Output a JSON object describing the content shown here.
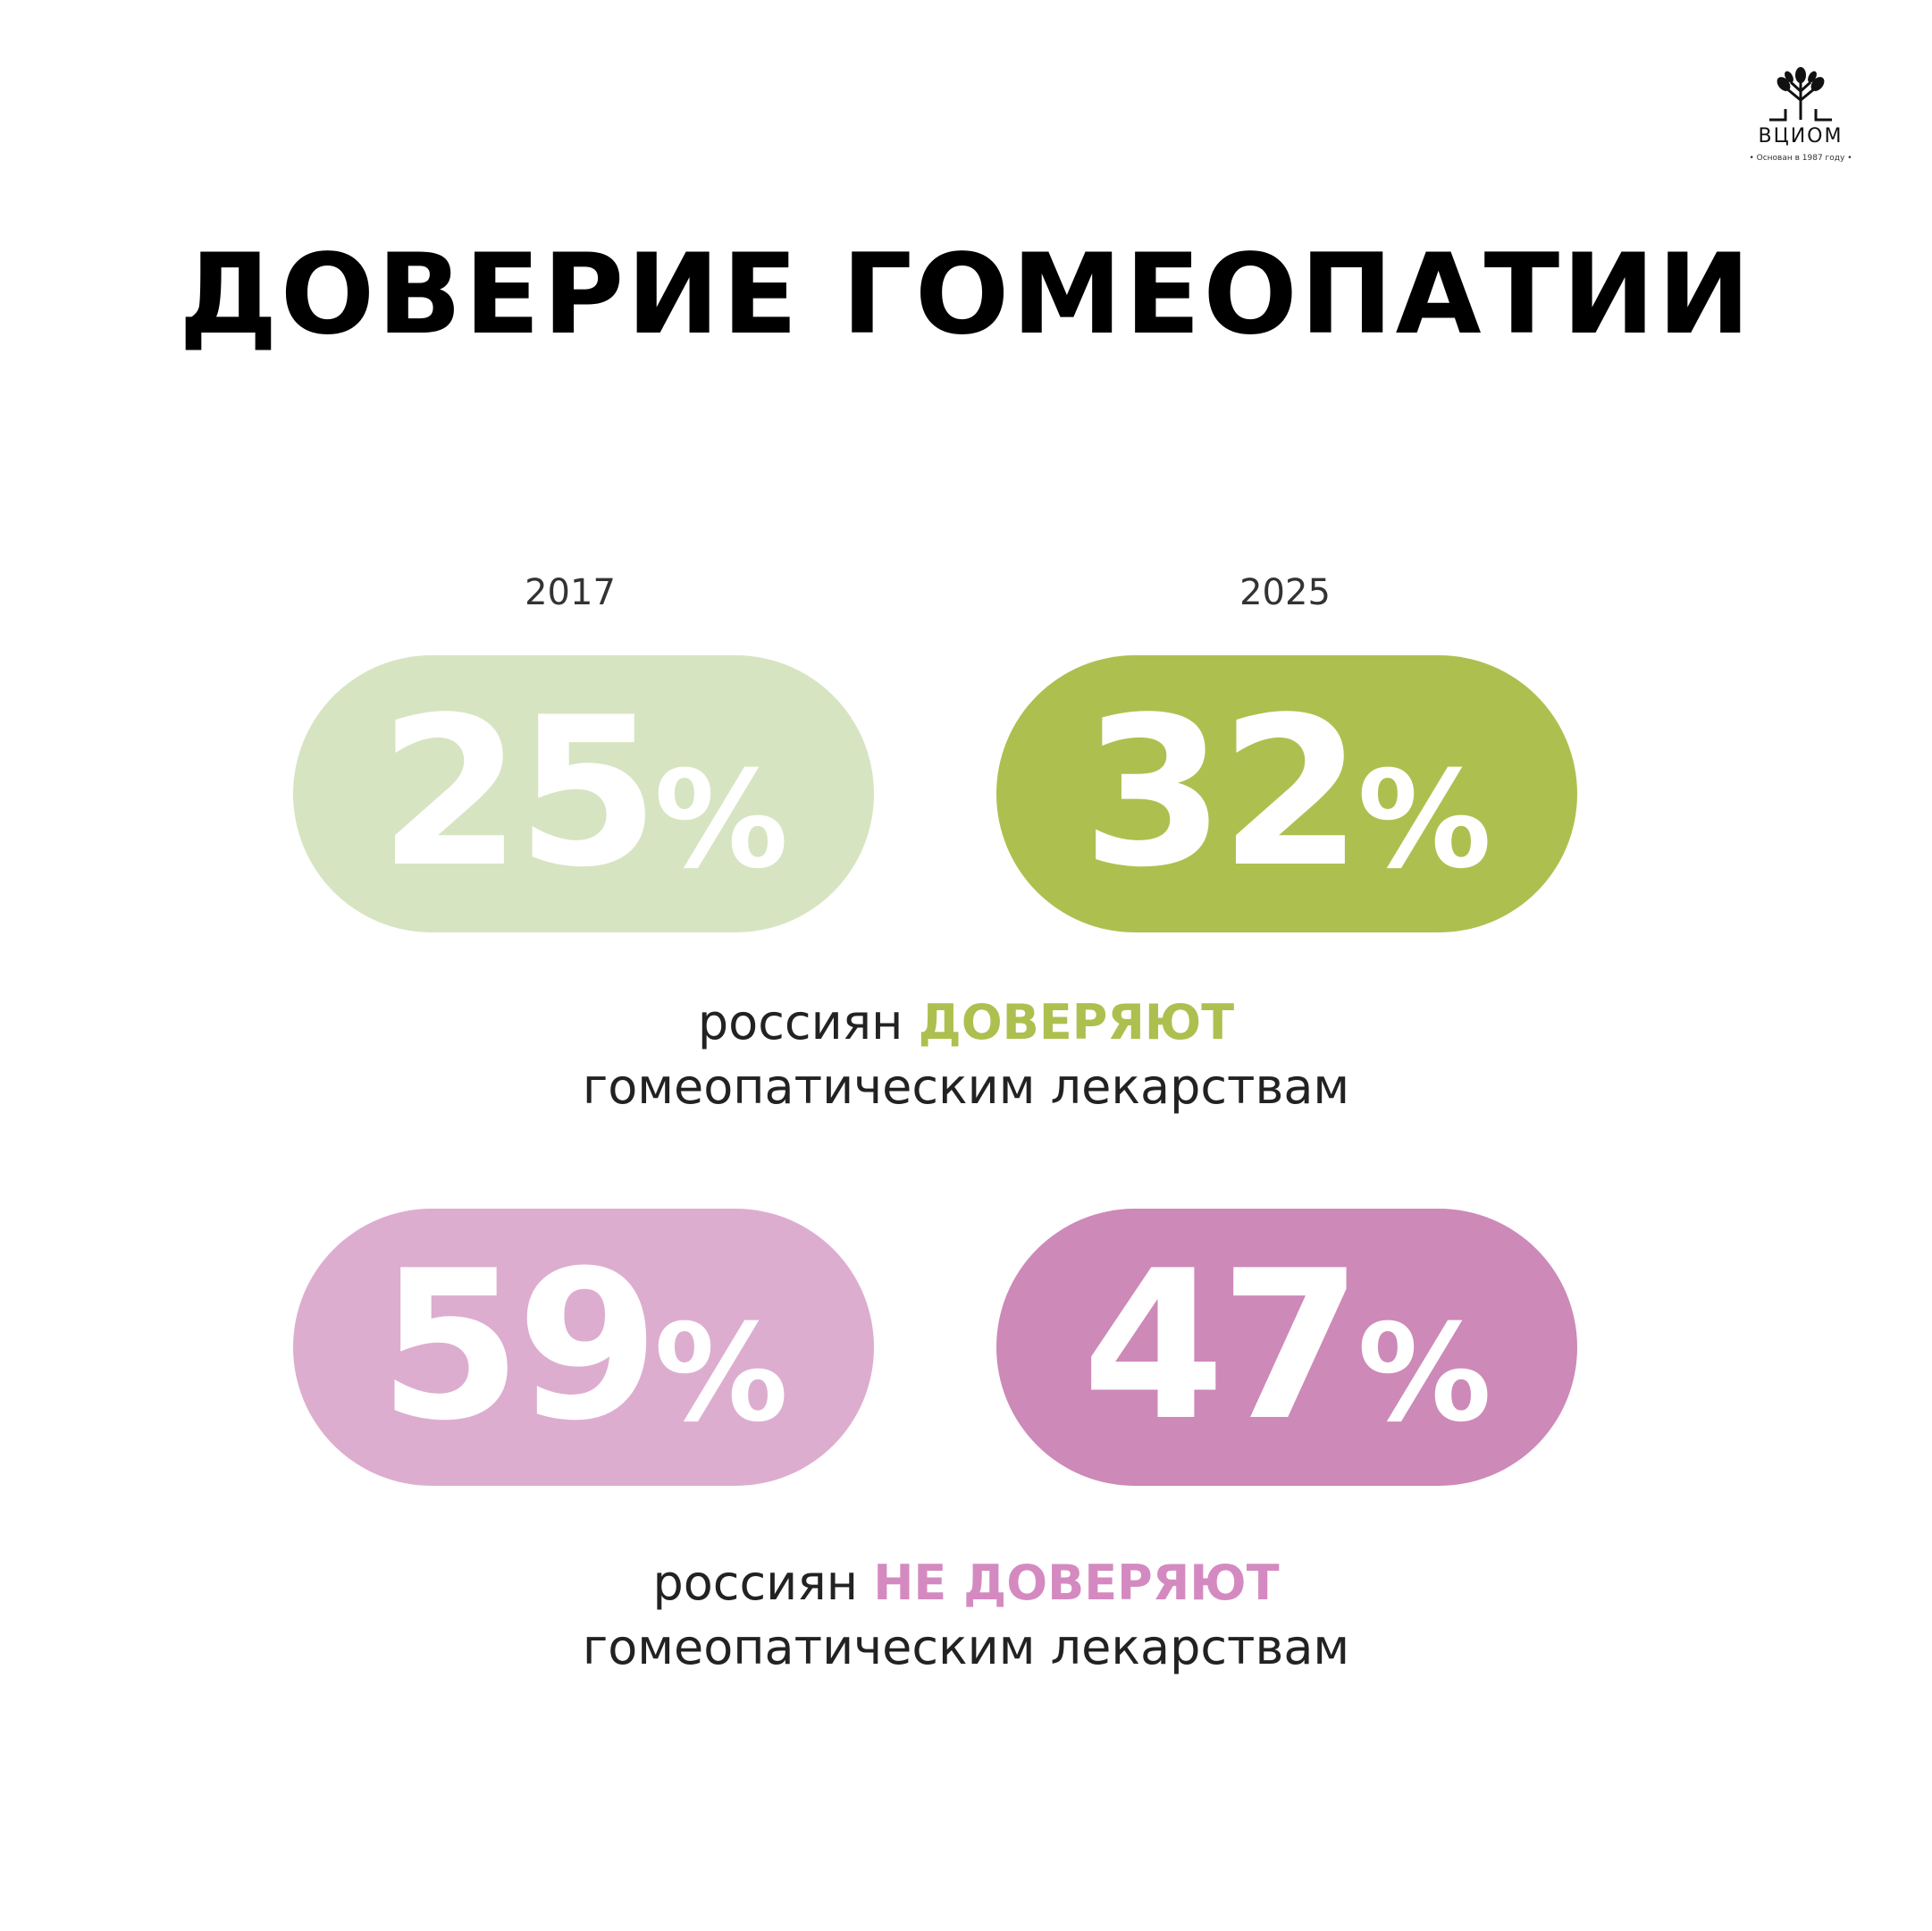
{
  "logo": {
    "name": "ВЦИОМ",
    "subtitle": "• Основан в 1987 году •"
  },
  "title": "ДОВЕРИЕ ГОМЕОПАТИИ",
  "years": [
    "2017",
    "2025"
  ],
  "colors": {
    "trust_2017": "#d7e4c2",
    "trust_2025": "#adc04f",
    "distrust_2017": "#ddadcf",
    "distrust_2025": "#cd89b8",
    "trust_accent": "#adc04f",
    "distrust_accent": "#d48ac0"
  },
  "trust": {
    "v2017": {
      "value": "25",
      "unit": "%"
    },
    "v2025": {
      "value": "32",
      "unit": "%"
    },
    "caption": {
      "prefix": "россиян",
      "highlight": "ДОВЕРЯЮТ",
      "line2": "гомеопатическим лекарствам"
    }
  },
  "distrust": {
    "v2017": {
      "value": "59",
      "unit": "%"
    },
    "v2025": {
      "value": "47",
      "unit": "%"
    },
    "caption": {
      "prefix": "россиян",
      "highlight": "НЕ ДОВЕРЯЮТ",
      "line2": "гомеопатическим лекарствам"
    }
  }
}
